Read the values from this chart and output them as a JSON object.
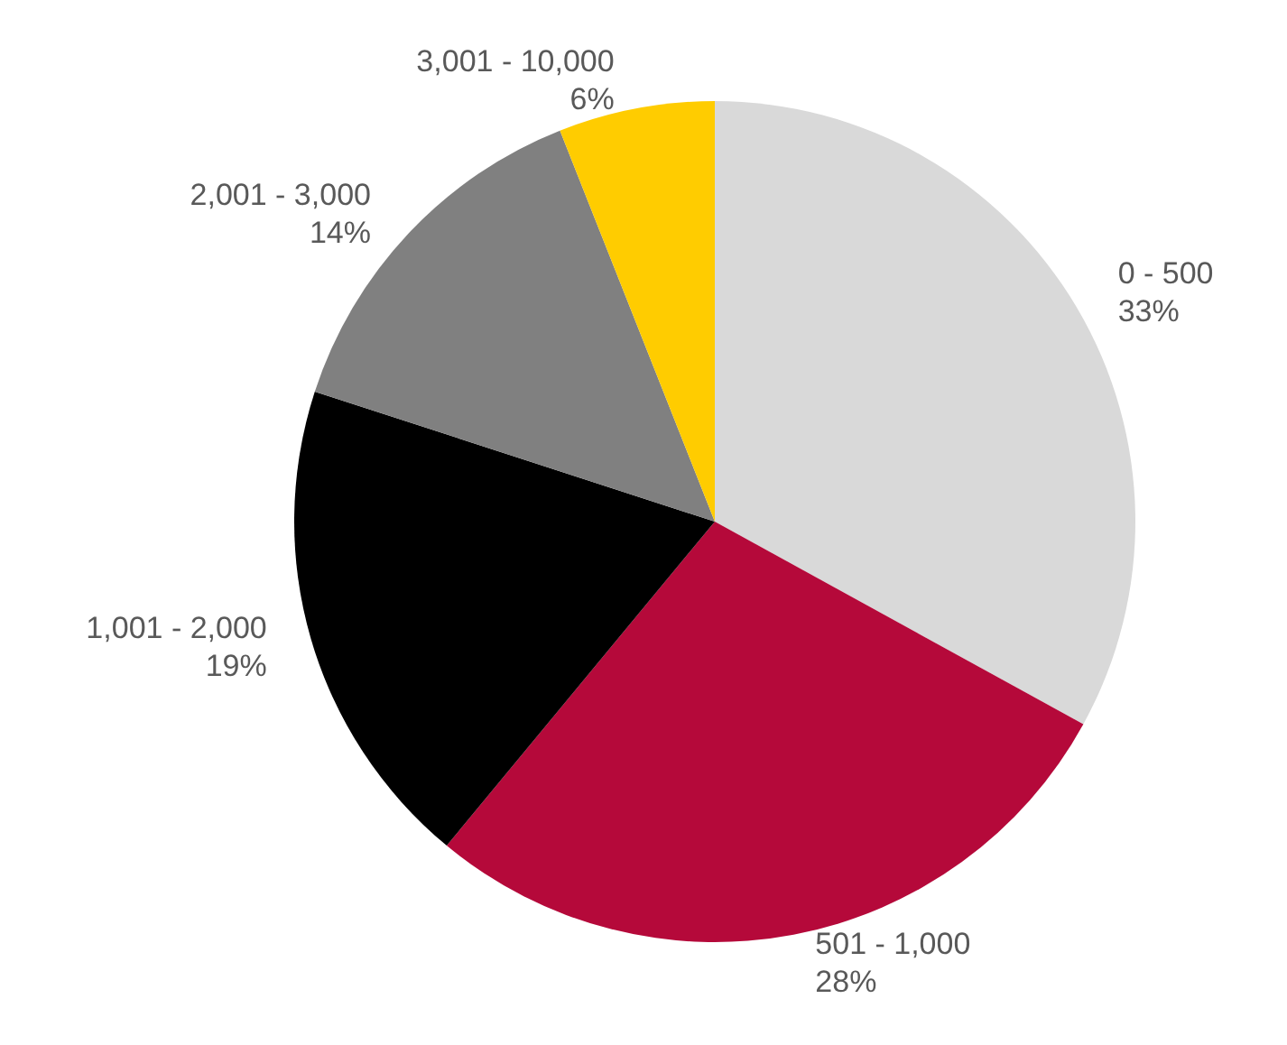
{
  "chart_data": {
    "type": "pie",
    "categories": [
      "0 - 500",
      "501 - 1,000",
      "1,001 - 2,000",
      "2,001 - 3,000",
      "3,001 - 10,000"
    ],
    "values": [
      33,
      28,
      19,
      14,
      6
    ],
    "colors": [
      "#d9d9d9",
      "#b5093a",
      "#000000",
      "#808080",
      "#ffcc00"
    ],
    "value_labels": [
      "33%",
      "28%",
      "19%",
      "14%",
      "6%"
    ],
    "legend": false
  }
}
